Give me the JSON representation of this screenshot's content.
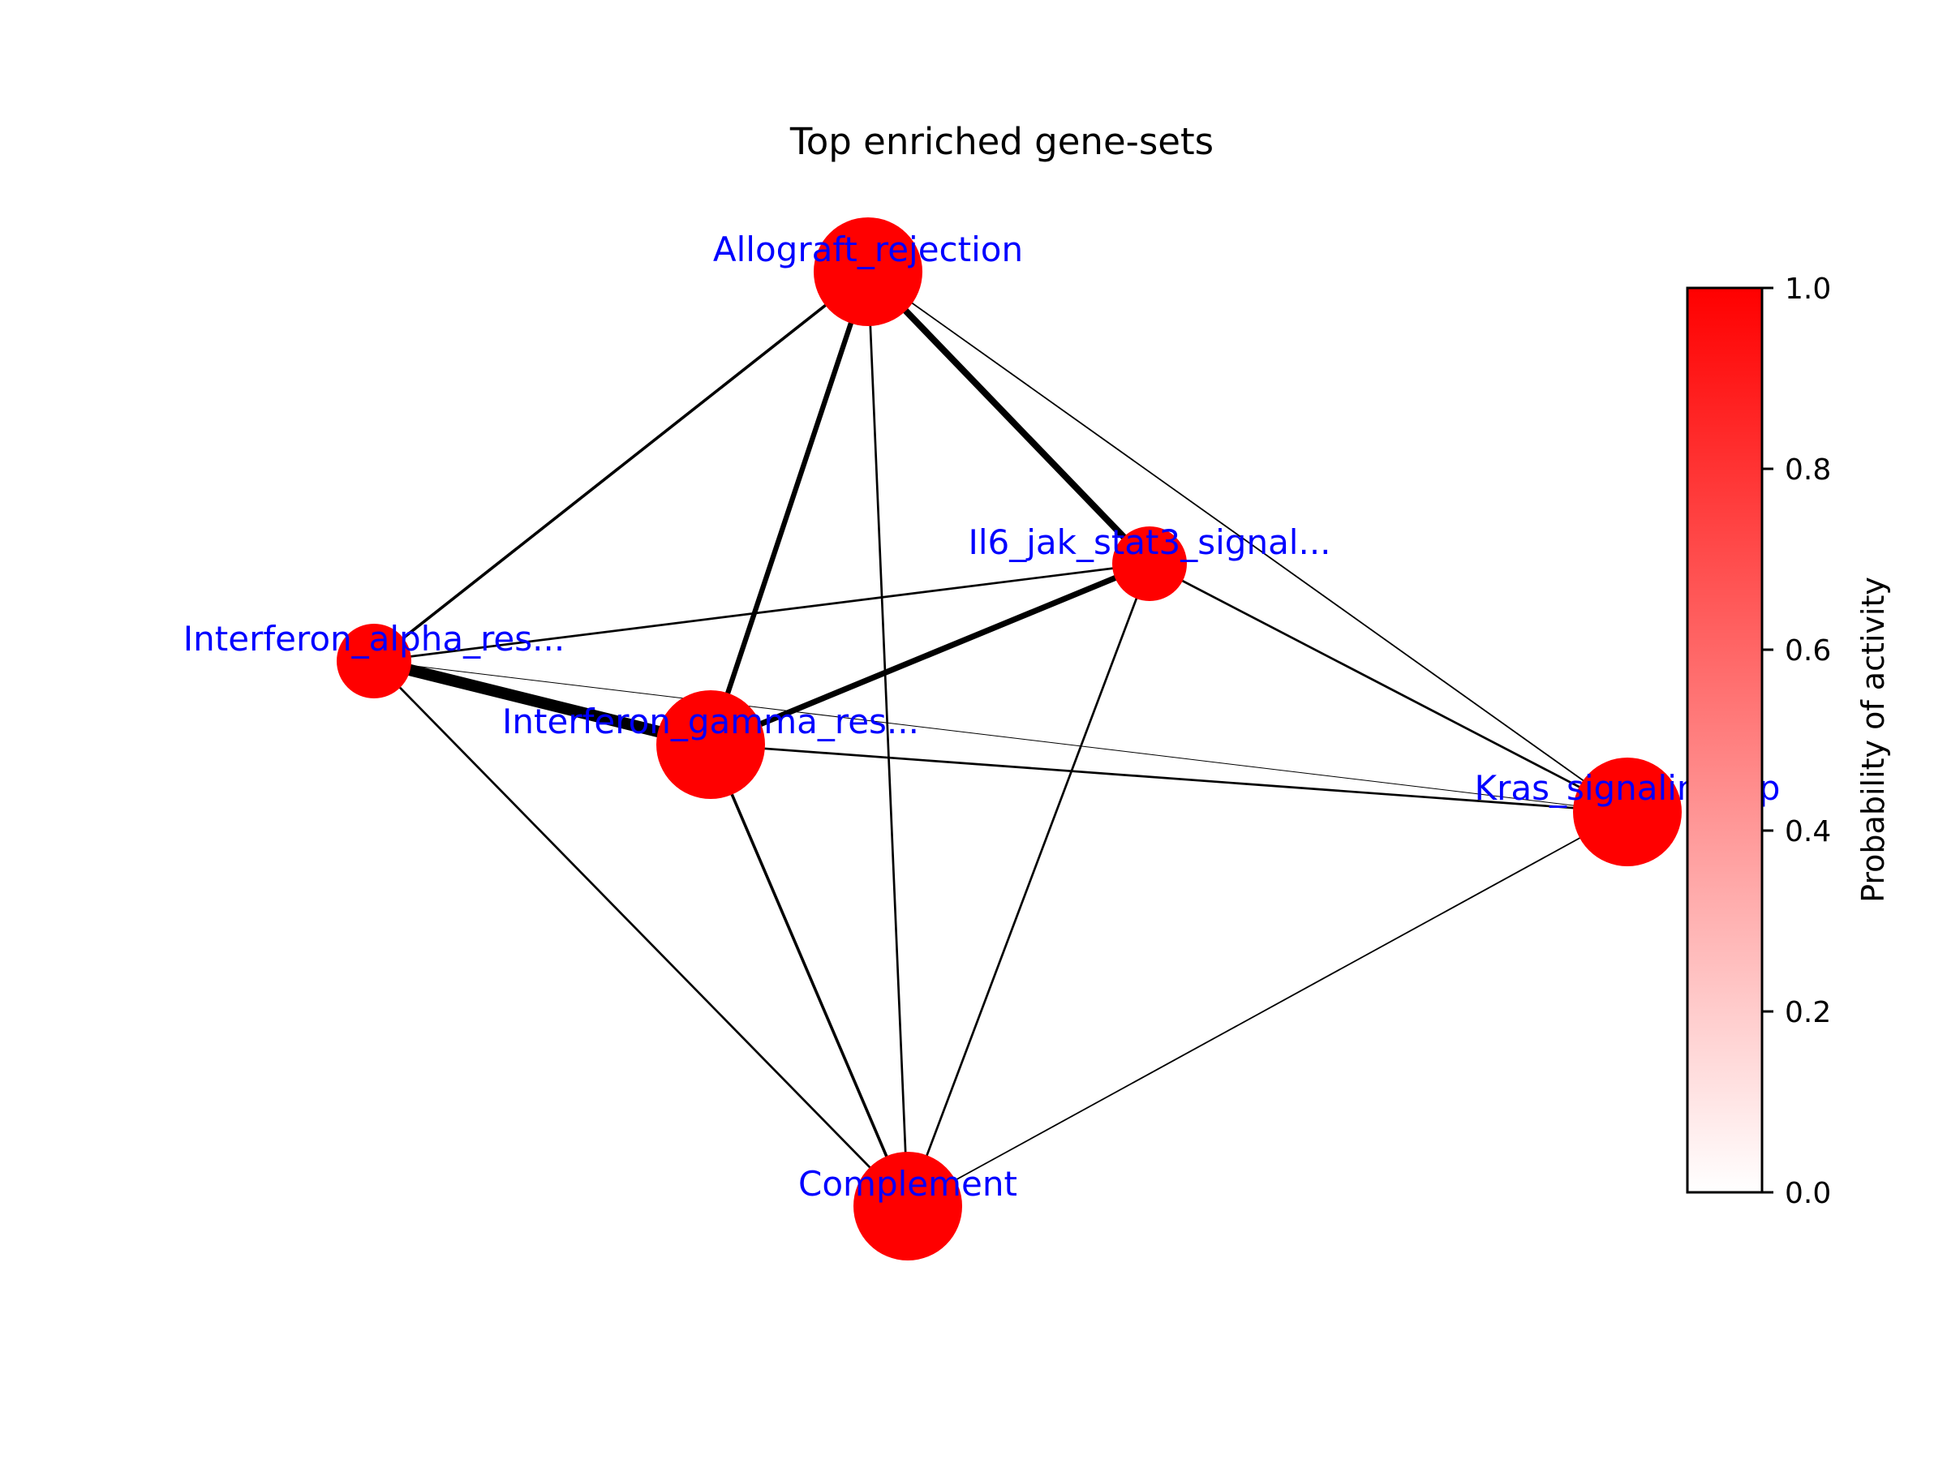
{
  "title": "Top enriched gene-sets",
  "colors": {
    "node": "#ff0000",
    "label": "#0000ff",
    "edge": "#000000",
    "cbar_low": "#ffffff",
    "cbar_high": "#ff0000"
  },
  "nodes": [
    {
      "id": "allograft",
      "label": "Allograft_rejection",
      "activity": 1.0
    },
    {
      "id": "il6",
      "label": "Il6_jak_stat3_signal...",
      "activity": 1.0
    },
    {
      "id": "ifna",
      "label": "Interferon_alpha_res...",
      "activity": 1.0
    },
    {
      "id": "ifng",
      "label": "Interferon_gamma_res...",
      "activity": 1.0
    },
    {
      "id": "kras",
      "label": "Kras_signaling_up",
      "activity": 1.0
    },
    {
      "id": "complement",
      "label": "Complement",
      "activity": 1.0
    }
  ],
  "edges": [
    {
      "source": "allograft",
      "target": "ifna",
      "weight": 4
    },
    {
      "source": "allograft",
      "target": "ifng",
      "weight": 7
    },
    {
      "source": "allograft",
      "target": "il6",
      "weight": 9
    },
    {
      "source": "allograft",
      "target": "kras",
      "weight": 2
    },
    {
      "source": "allograft",
      "target": "complement",
      "weight": 3
    },
    {
      "source": "ifna",
      "target": "il6",
      "weight": 3
    },
    {
      "source": "ifna",
      "target": "ifng",
      "weight": 16
    },
    {
      "source": "ifna",
      "target": "kras",
      "weight": 1
    },
    {
      "source": "ifna",
      "target": "complement",
      "weight": 3
    },
    {
      "source": "ifng",
      "target": "il6",
      "weight": 8
    },
    {
      "source": "ifng",
      "target": "kras",
      "weight": 3
    },
    {
      "source": "ifng",
      "target": "complement",
      "weight": 4
    },
    {
      "source": "il6",
      "target": "kras",
      "weight": 3
    },
    {
      "source": "il6",
      "target": "complement",
      "weight": 3
    },
    {
      "source": "kras",
      "target": "complement",
      "weight": 2
    }
  ],
  "colorbar": {
    "label": "Probability of activity",
    "ticks": [
      "0.0",
      "0.2",
      "0.4",
      "0.6",
      "0.8",
      "1.0"
    ],
    "range": [
      0,
      1
    ]
  }
}
